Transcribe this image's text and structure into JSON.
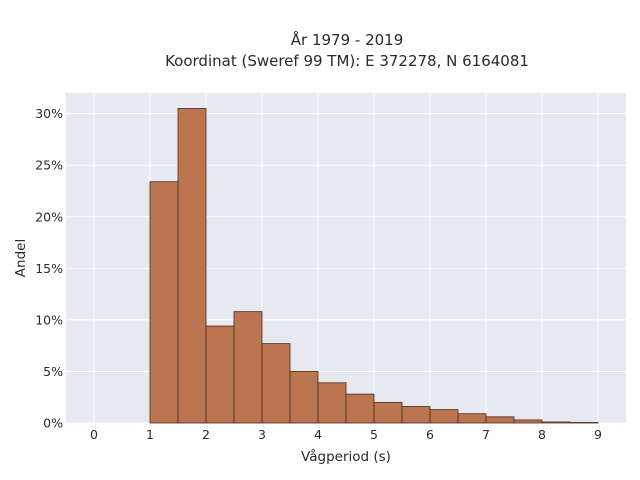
{
  "chart_data": {
    "type": "bar",
    "title": [
      "År 1979 - 2019",
      "Koordinat (Sweref 99 TM): E 372278, N 6164081"
    ],
    "xlabel": "Vågperiod (s)",
    "ylabel": "Andel",
    "xlim": [
      -0.5,
      9.5
    ],
    "ylim": [
      0,
      0.32
    ],
    "x_ticks": [
      0,
      1,
      2,
      3,
      4,
      5,
      6,
      7,
      8,
      9
    ],
    "x_tick_labels": [
      "0",
      "1",
      "2",
      "3",
      "4",
      "5",
      "6",
      "7",
      "8",
      "9"
    ],
    "y_ticks": [
      0,
      0.05,
      0.1,
      0.15,
      0.2,
      0.25,
      0.3
    ],
    "y_tick_labels": [
      "0%",
      "5%",
      "10%",
      "15%",
      "20%",
      "25%",
      "30%"
    ],
    "bin_edges": [
      1.0,
      1.5,
      2.0,
      2.5,
      3.0,
      3.5,
      4.0,
      4.5,
      5.0,
      5.5,
      6.0,
      6.5,
      7.0,
      7.5,
      8.0,
      8.5,
      9.0
    ],
    "values": [
      0.234,
      0.305,
      0.094,
      0.108,
      0.077,
      0.05,
      0.039,
      0.028,
      0.02,
      0.016,
      0.013,
      0.009,
      0.006,
      0.003,
      0.001,
      0.0005
    ],
    "grid": true,
    "colors": {
      "bar_fill": "#bb7550",
      "bar_edge": "#4a2e1e",
      "plot_background": "#e7e8f0",
      "grid": "#ffffff"
    }
  }
}
